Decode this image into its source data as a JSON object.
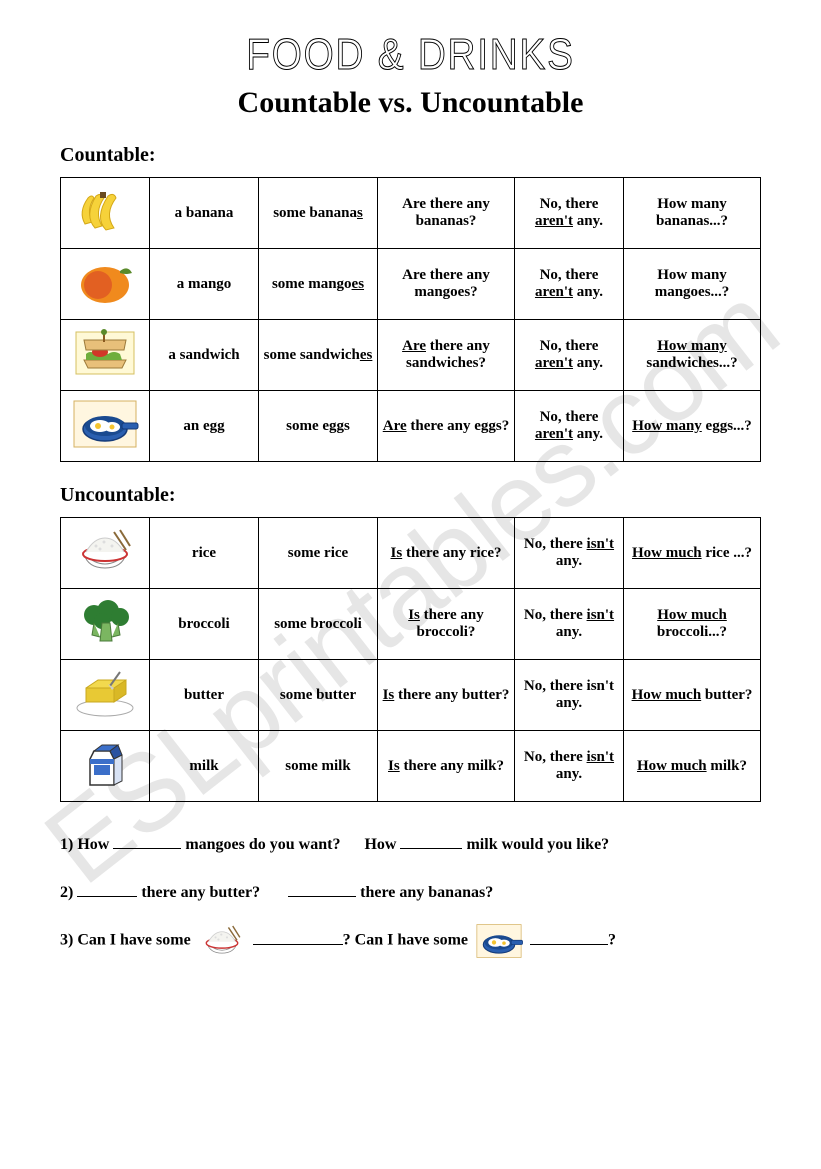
{
  "watermark": "ESLprintables.com",
  "title": "FOOD & DRINKS",
  "subtitle": "Countable vs. Uncountable",
  "section1_label": "Countable:",
  "section2_label": "Uncountable:",
  "countable_rows": [
    {
      "icon": "bananas",
      "singular": "a  banana",
      "some_pre": "some banana",
      "some_u": "s",
      "q_pre": "Are there any bananas?",
      "q_u": "",
      "neg_pre": "No, there ",
      "neg_u": "aren't",
      "neg_post": " any.",
      "hm_pre": "How many bananas...?",
      "hm_u": ""
    },
    {
      "icon": "mango",
      "singular": "a mango",
      "some_pre": "some mango",
      "some_u": "es",
      "q_pre": "Are there any mangoes?",
      "q_u": "",
      "neg_pre": "No, there ",
      "neg_u": "aren't",
      "neg_post": " any.",
      "hm_pre": "How many mangoes...?",
      "hm_u": ""
    },
    {
      "icon": "sandwich",
      "singular": "a sandwich",
      "some_pre": "some sandwich",
      "some_u": "es",
      "q_u": "Are",
      "q_pre": " there any sandwiches?",
      "neg_pre": "No, there ",
      "neg_u": "aren't",
      "neg_post": " any.",
      "hm_u": "How many",
      "hm_pre": " sandwiches...?"
    },
    {
      "icon": "egg",
      "singular": "an egg",
      "some_pre": "some eggs",
      "some_u": "",
      "q_u": "Are",
      "q_pre": " there any eggs?",
      "neg_pre": "No, there ",
      "neg_u": "aren't",
      "neg_post": " any.",
      "hm_u": "How many",
      "hm_pre": " eggs...?"
    }
  ],
  "uncountable_rows": [
    {
      "icon": "rice",
      "singular": "rice",
      "some_pre": "some rice",
      "some_u": "",
      "q_u": "Is",
      "q_pre": " there any rice?",
      "neg_pre": "No, there ",
      "neg_u": "isn't",
      "neg_post": " any.",
      "hm_u": "How much",
      "hm_pre": " rice ...?"
    },
    {
      "icon": "broccoli",
      "singular": "broccoli",
      "some_pre": "some broccoli",
      "some_u": "",
      "q_u": "Is",
      "q_pre": " there any broccoli?",
      "neg_pre": "No, there ",
      "neg_u": "isn't",
      "neg_post": " any.",
      "hm_u": "How much",
      "hm_pre": " broccoli...?"
    },
    {
      "icon": "butter",
      "singular": "butter",
      "some_pre": "some butter",
      "some_u": "",
      "q_u": "Is",
      "q_pre": " there any butter?",
      "neg_pre": "No, there isn't any.",
      "neg_u": "",
      "neg_post": "",
      "hm_u": "How much",
      "hm_pre": " butter?"
    },
    {
      "icon": "milk",
      "singular": "milk",
      "some_pre": "some milk",
      "some_u": "",
      "q_u": "Is",
      "q_pre": " there any milk?",
      "neg_pre": "No, there ",
      "neg_u": "isn't",
      "neg_post": " any.",
      "hm_u": "How much",
      "hm_pre": " milk?"
    }
  ],
  "questions": {
    "q1a_pre": "1) How ",
    "q1a_post": " mangoes do you want?",
    "q1b_pre": "How ",
    "q1b_post": " milk would you like?",
    "q2a_post": " there any butter?",
    "q2b_post": " there any bananas?",
    "q2_label": "2) ",
    "q3_pre": "3) Can I have some ",
    "q3_mid": "?   Can I have some ",
    "q3_end": "?",
    "blank_w_short": "68px",
    "blank_w_med": "90px"
  },
  "colors": {
    "banana_yellow": "#f6d23a",
    "banana_shadow": "#d4a817",
    "mango_orange": "#f08a1d",
    "mango_red": "#d94426",
    "mango_green": "#5a8a2a",
    "bread": "#e8c07a",
    "lettuce": "#6fae3c",
    "tomato": "#d13828",
    "pan_blue": "#2a5fb0",
    "egg_white": "#ffffff",
    "egg_yolk": "#f4c430",
    "rice_bowl": "#ffffff",
    "rice_bowl_rim": "#cc3333",
    "broccoli_green": "#2e7d32",
    "broccoli_stem": "#7bb661",
    "butter_yellow": "#f2d94e",
    "butter_plate": "#ffffff",
    "milk_blue": "#3b6fc9",
    "milk_white": "#ffffff"
  }
}
